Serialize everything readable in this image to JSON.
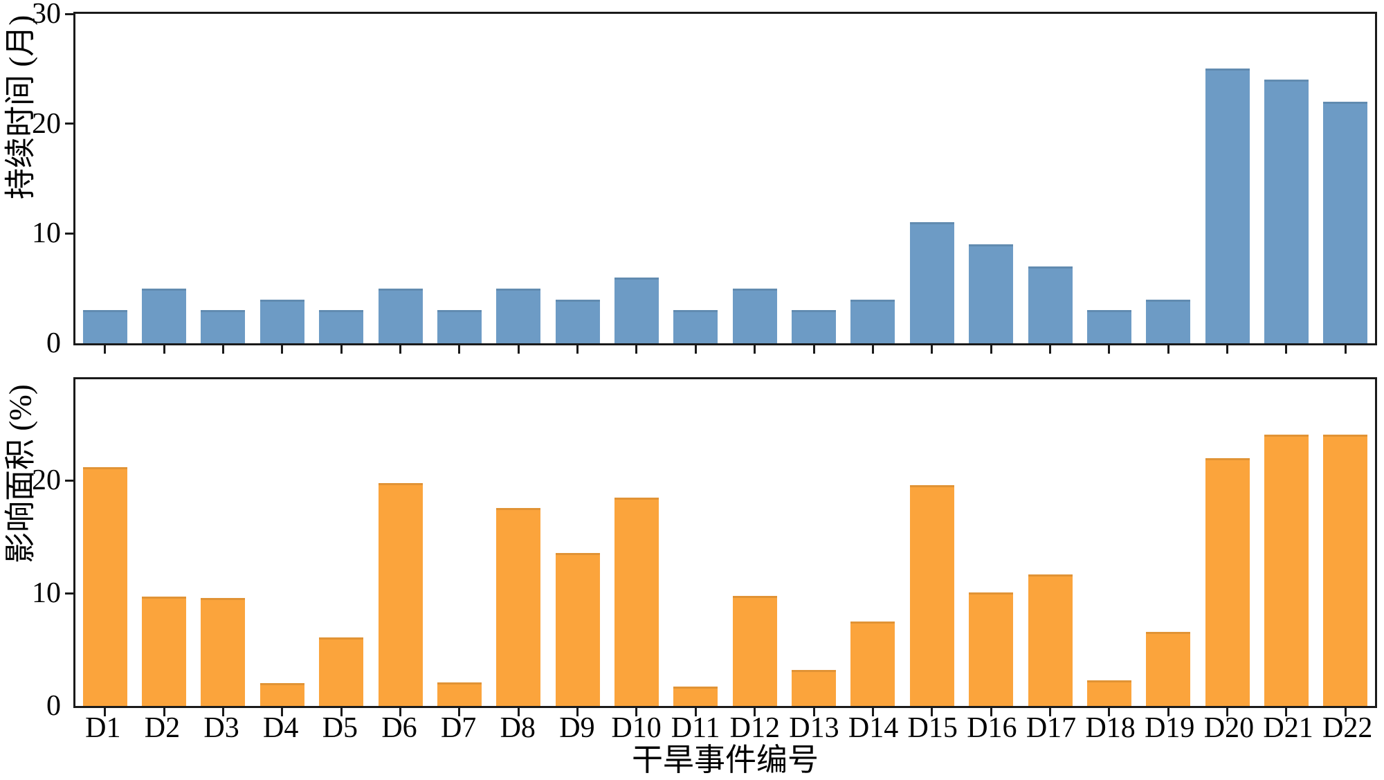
{
  "chart_data": [
    {
      "type": "bar",
      "panel": "top",
      "categories": [
        "D1",
        "D2",
        "D3",
        "D4",
        "D5",
        "D6",
        "D7",
        "D8",
        "D9",
        "D10",
        "D11",
        "D12",
        "D13",
        "D14",
        "D15",
        "D16",
        "D17",
        "D18",
        "D19",
        "D20",
        "D21",
        "D22"
      ],
      "values": [
        3,
        5,
        3,
        4,
        3,
        5,
        3,
        5,
        4,
        6,
        3,
        5,
        3,
        4,
        11,
        9,
        7,
        3,
        4,
        25,
        24,
        22
      ],
      "ylabel": "持续时间 (月)",
      "yticks": [
        0,
        10,
        20,
        30
      ],
      "ylim": [
        0,
        30
      ],
      "bar_color": "#6D9BC5",
      "grid": "off",
      "legend": "none",
      "show_category_labels": false
    },
    {
      "type": "bar",
      "panel": "bottom",
      "categories": [
        "D1",
        "D2",
        "D3",
        "D4",
        "D5",
        "D6",
        "D7",
        "D8",
        "D9",
        "D10",
        "D11",
        "D12",
        "D13",
        "D14",
        "D15",
        "D16",
        "D17",
        "D18",
        "D19",
        "D20",
        "D21",
        "D22"
      ],
      "values": [
        21.2,
        9.7,
        9.6,
        2.0,
        6.1,
        19.8,
        2.1,
        17.6,
        13.6,
        18.5,
        1.7,
        9.8,
        3.2,
        7.5,
        19.6,
        10.1,
        11.7,
        2.3,
        6.6,
        22.0,
        24.1,
        24.1
      ],
      "ylabel": "影响面积 (%)",
      "xlabel": "干旱事件编号",
      "yticks": [
        0,
        10,
        20
      ],
      "ylim": [
        0,
        29
      ],
      "bar_color": "#FBA43C",
      "grid": "off",
      "legend": "none",
      "show_category_labels": true
    }
  ],
  "colors": {
    "duration_bar": "#6D9BC5",
    "area_bar": "#FBA43C",
    "axis": "#1a1a1a",
    "background": "#ffffff"
  }
}
